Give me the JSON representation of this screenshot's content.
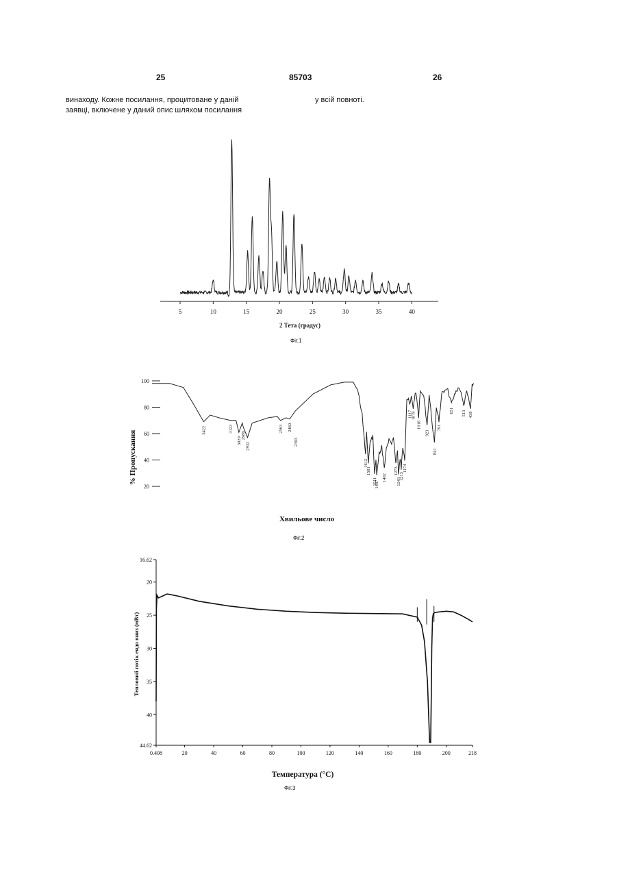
{
  "header": {
    "left_page": "25",
    "center_number": "85703",
    "right_page": "26"
  },
  "text": {
    "left_line1": "винаходу. Кожне посилання, процитоване у даній",
    "left_line2": "заявці, включене у даний опис шляхом посилання",
    "right_line1": "у всій повноті."
  },
  "figures": {
    "fig1": {
      "caption": "Фіг.1",
      "chart_data": {
        "type": "line",
        "title": "",
        "xlabel": "2 Тета (градус)",
        "ylabel": "",
        "xlim": [
          2,
          44
        ],
        "ylim": [
          0,
          100
        ],
        "x_ticks": [
          "5",
          "10",
          "15",
          "20",
          "25",
          "30",
          "35",
          "40"
        ],
        "baseline": 4,
        "peaks": [
          {
            "x": 10.0,
            "y": 8
          },
          {
            "x": 12.8,
            "y": 100
          },
          {
            "x": 15.2,
            "y": 26
          },
          {
            "x": 15.9,
            "y": 49
          },
          {
            "x": 16.9,
            "y": 24
          },
          {
            "x": 17.5,
            "y": 14
          },
          {
            "x": 18.5,
            "y": 70
          },
          {
            "x": 18.8,
            "y": 36
          },
          {
            "x": 19.6,
            "y": 20
          },
          {
            "x": 20.5,
            "y": 52
          },
          {
            "x": 21.0,
            "y": 30
          },
          {
            "x": 22.2,
            "y": 51
          },
          {
            "x": 23.4,
            "y": 32
          },
          {
            "x": 24.4,
            "y": 10
          },
          {
            "x": 25.3,
            "y": 14
          },
          {
            "x": 26.0,
            "y": 8
          },
          {
            "x": 26.8,
            "y": 10
          },
          {
            "x": 27.6,
            "y": 9
          },
          {
            "x": 28.5,
            "y": 9
          },
          {
            "x": 29.8,
            "y": 15
          },
          {
            "x": 30.5,
            "y": 10
          },
          {
            "x": 31.5,
            "y": 8
          },
          {
            "x": 32.6,
            "y": 7
          },
          {
            "x": 34.0,
            "y": 12
          },
          {
            "x": 35.5,
            "y": 6
          },
          {
            "x": 36.5,
            "y": 7
          },
          {
            "x": 38.0,
            "y": 5
          },
          {
            "x": 39.5,
            "y": 6
          }
        ]
      }
    },
    "fig2": {
      "caption": "Фіг.2",
      "chart_data": {
        "type": "line",
        "title": "",
        "xlabel": "Хвильове число",
        "ylabel": "% Пропускання",
        "ylim": [
          20,
          100
        ],
        "y_ticks": [
          "100",
          "80",
          "60",
          "40",
          "20"
        ],
        "x_reversed": true,
        "xlim": [
          4000,
          400
        ],
        "peak_labels": [
          "3422",
          "3123",
          "3029",
          "2932",
          "2980",
          "2563",
          "2393",
          "2460",
          "1612",
          "1581",
          "1511",
          "1487",
          "1402",
          "1273",
          "1243",
          "1213",
          "1174",
          "1117",
          "1079",
          "1018",
          "923",
          "841",
          "791",
          "651",
          "513",
          "438"
        ],
        "points": [
          [
            4000,
            98
          ],
          [
            3800,
            98
          ],
          [
            3650,
            95
          ],
          [
            3550,
            84
          ],
          [
            3422,
            69
          ],
          [
            3350,
            74
          ],
          [
            3250,
            72
          ],
          [
            3123,
            70
          ],
          [
            3060,
            70
          ],
          [
            3029,
            61
          ],
          [
            2990,
            68
          ],
          [
            2980,
            65
          ],
          [
            2932,
            57
          ],
          [
            2880,
            68
          ],
          [
            2700,
            72
          ],
          [
            2600,
            73
          ],
          [
            2563,
            70
          ],
          [
            2500,
            72
          ],
          [
            2460,
            71
          ],
          [
            2400,
            77
          ],
          [
            2200,
            90
          ],
          [
            2000,
            97
          ],
          [
            1850,
            99
          ],
          [
            1750,
            99
          ],
          [
            1700,
            93
          ],
          [
            1650,
            75
          ],
          [
            1612,
            44
          ],
          [
            1600,
            60
          ],
          [
            1581,
            38
          ],
          [
            1560,
            54
          ],
          [
            1530,
            58
          ],
          [
            1511,
            30
          ],
          [
            1495,
            40
          ],
          [
            1487,
            28
          ],
          [
            1460,
            45
          ],
          [
            1430,
            50
          ],
          [
            1402,
            33
          ],
          [
            1380,
            48
          ],
          [
            1350,
            55
          ],
          [
            1320,
            52
          ],
          [
            1300,
            58
          ],
          [
            1273,
            38
          ],
          [
            1255,
            46
          ],
          [
            1243,
            30
          ],
          [
            1225,
            40
          ],
          [
            1213,
            34
          ],
          [
            1195,
            50
          ],
          [
            1174,
            40
          ],
          [
            1150,
            85
          ],
          [
            1130,
            88
          ],
          [
            1117,
            81
          ],
          [
            1100,
            88
          ],
          [
            1079,
            80
          ],
          [
            1050,
            92
          ],
          [
            1018,
            73
          ],
          [
            1000,
            92
          ],
          [
            960,
            88
          ],
          [
            923,
            66
          ],
          [
            900,
            90
          ],
          [
            841,
            52
          ],
          [
            820,
            80
          ],
          [
            791,
            70
          ],
          [
            760,
            90
          ],
          [
            700,
            95
          ],
          [
            651,
            83
          ],
          [
            600,
            92
          ],
          [
            560,
            95
          ],
          [
            513,
            81
          ],
          [
            480,
            93
          ],
          [
            438,
            80
          ],
          [
            420,
            97
          ],
          [
            400,
            98
          ]
        ]
      }
    },
    "fig3": {
      "caption": "Фіг.3",
      "chart_data": {
        "type": "line",
        "title": "",
        "xlabel": "Температура (°С)",
        "ylabel": "Тепловий потік ендо вниз (мВт)",
        "ylim": [
          16.62,
          44.62
        ],
        "xlim": [
          0.408,
          218
        ],
        "x_ticks": [
          "0.408",
          "20",
          "40",
          "60",
          "80",
          "100",
          "120",
          "140",
          "160",
          "180",
          "200",
          "218"
        ],
        "y_ticks": [
          "16.62",
          "20",
          "25",
          "30",
          "35",
          "40",
          "44.62"
        ],
        "series": [
          {
            "name": "",
            "points": [
              [
                0.408,
                38
              ],
              [
                0.6,
                24
              ],
              [
                1.0,
                22
              ],
              [
                2,
                22.4
              ],
              [
                8,
                21.8
              ],
              [
                15,
                22.1
              ],
              [
                30,
                22.9
              ],
              [
                50,
                23.6
              ],
              [
                70,
                24.1
              ],
              [
                90,
                24.4
              ],
              [
                110,
                24.6
              ],
              [
                130,
                24.7
              ],
              [
                150,
                24.75
              ],
              [
                170,
                24.8
              ],
              [
                180,
                25.3
              ],
              [
                183,
                26.5
              ],
              [
                185,
                29
              ],
              [
                187,
                35
              ],
              [
                188.5,
                44.2
              ],
              [
                189.2,
                44.2
              ],
              [
                189.6,
                38
              ],
              [
                190,
                30
              ],
              [
                190.5,
                25.5
              ],
              [
                191,
                24.8
              ],
              [
                192,
                24.6
              ],
              [
                195,
                24.5
              ],
              [
                200,
                24.4
              ],
              [
                205,
                24.5
              ],
              [
                210,
                25.0
              ],
              [
                215,
                25.6
              ],
              [
                218,
                26.0
              ]
            ]
          }
        ]
      }
    }
  }
}
